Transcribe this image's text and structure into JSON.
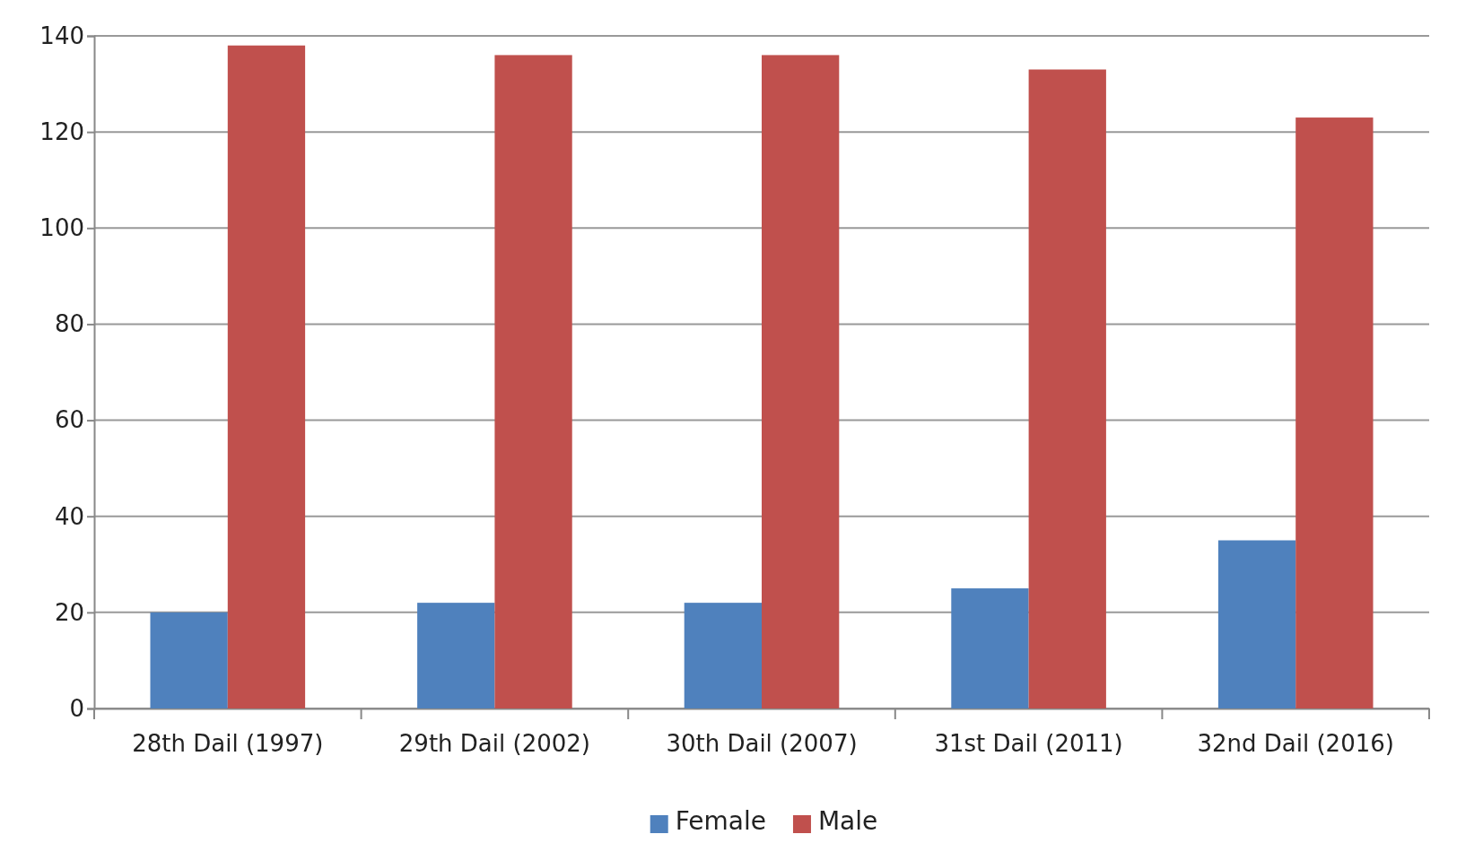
{
  "chart_data": {
    "type": "bar",
    "categories": [
      "28th Dail (1997)",
      "29th Dail (2002)",
      "30th Dail (2007)",
      "31st Dail (2011)",
      "32nd Dail (2016)"
    ],
    "series": [
      {
        "name": "Female",
        "color": "#4f81bd",
        "values": [
          20,
          22,
          22,
          25,
          35
        ]
      },
      {
        "name": "Male",
        "color": "#c0504d",
        "values": [
          138,
          136,
          136,
          133,
          123
        ]
      }
    ],
    "ylim": [
      0,
      140
    ],
    "yticks": [
      0,
      20,
      40,
      60,
      80,
      100,
      120,
      140
    ],
    "grid": "y",
    "legend": "bottom"
  }
}
